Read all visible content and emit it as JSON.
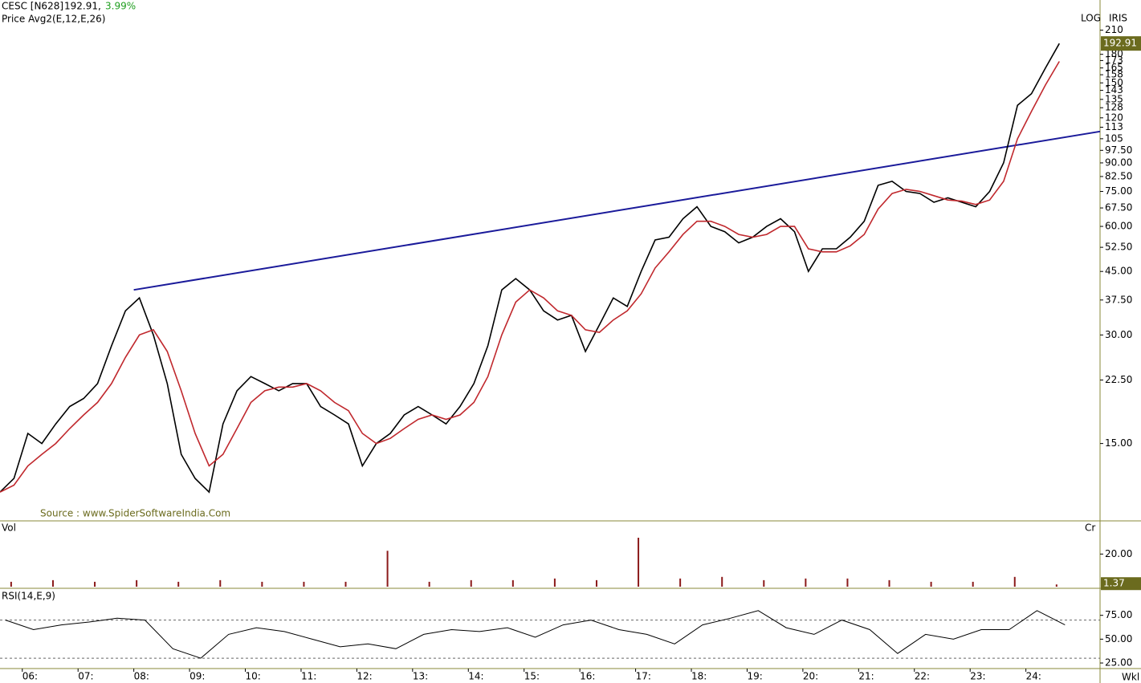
{
  "chart_data": [
    {
      "type": "line",
      "ticker": "CESC [N628]",
      "quote": "192.91,",
      "change": "3.99%",
      "subtitle": "Price  Avg2(E,12,E,26)",
      "scale_label": "LOG",
      "feed_label": "IRIS",
      "source": "Source : www.SpiderSoftwareIndia.Com",
      "log_scale": true,
      "xlim": [
        2005.6,
        2025.33
      ],
      "x": [
        2005.6,
        2005.85,
        2006.1,
        2006.35,
        2006.6,
        2006.85,
        2007.1,
        2007.35,
        2007.6,
        2007.85,
        2008.1,
        2008.35,
        2008.6,
        2008.85,
        2009.1,
        2009.35,
        2009.6,
        2009.85,
        2010.1,
        2010.35,
        2010.6,
        2010.85,
        2011.1,
        2011.35,
        2011.6,
        2011.85,
        2012.1,
        2012.35,
        2012.6,
        2012.85,
        2013.1,
        2013.35,
        2013.6,
        2013.85,
        2014.1,
        2014.35,
        2014.6,
        2014.85,
        2015.1,
        2015.35,
        2015.6,
        2015.85,
        2016.1,
        2016.35,
        2016.6,
        2016.85,
        2017.1,
        2017.35,
        2017.6,
        2017.85,
        2018.1,
        2018.35,
        2018.6,
        2018.85,
        2019.1,
        2019.35,
        2019.6,
        2019.85,
        2020.1,
        2020.35,
        2020.6,
        2020.85,
        2021.1,
        2021.35,
        2021.6,
        2021.85,
        2022.1,
        2022.35,
        2022.6,
        2022.85,
        2023.1,
        2023.35,
        2023.6,
        2023.85,
        2024.1,
        2024.35,
        2024.6
      ],
      "series": [
        {
          "color": "#000000",
          "values": [
            11,
            12,
            16,
            15,
            17,
            19,
            20,
            22,
            28,
            35,
            38,
            30,
            22,
            14,
            12,
            11,
            17,
            21,
            23,
            22,
            21,
            22,
            22,
            19,
            18,
            17,
            13,
            15,
            16,
            18,
            19,
            18,
            17,
            19,
            22,
            28,
            40,
            43,
            40,
            35,
            33,
            34,
            27,
            32,
            38,
            36,
            45,
            55,
            56,
            63,
            68,
            60,
            58,
            54,
            56,
            60,
            63,
            58,
            45,
            52,
            52,
            56,
            62,
            78,
            80,
            75,
            74,
            70,
            72,
            70,
            68,
            75,
            90,
            130,
            140,
            165,
            192.91
          ]
        },
        {
          "color": "#c0282d",
          "values": [
            11,
            11.5,
            13,
            14,
            15,
            16.5,
            18,
            19.5,
            22,
            26,
            30,
            31,
            27,
            21,
            16,
            13,
            14,
            16.5,
            19.5,
            21,
            21.5,
            21.5,
            22,
            21,
            19.5,
            18.5,
            16,
            15,
            15.5,
            16.5,
            17.5,
            18,
            17.5,
            18,
            19.5,
            23,
            30,
            37,
            40,
            38,
            35,
            34,
            31,
            30.5,
            33,
            35,
            39,
            46,
            51,
            57,
            62,
            62,
            60,
            57,
            56,
            57,
            60,
            60,
            52,
            51,
            51,
            53,
            57,
            67,
            74,
            76,
            75,
            73,
            71,
            70.5,
            69,
            71,
            80,
            105,
            125,
            148,
            172
          ]
        }
      ],
      "trendline": {
        "color": "#1a1a9a",
        "x": [
          2008.0,
          2025.33
        ],
        "values": [
          40,
          110
        ]
      },
      "last_color": "#6b6b1e",
      "ylim": [
        9.2,
        224
      ],
      "yticks": [
        {
          "value": 15,
          "label": "15.00"
        },
        {
          "value": 22.5,
          "label": "22.50"
        },
        {
          "value": 30,
          "label": "30.00"
        },
        {
          "value": 37.5,
          "label": "37.50"
        },
        {
          "value": 45,
          "label": "45.00"
        },
        {
          "value": 52.5,
          "label": "52.50"
        },
        {
          "value": 60,
          "label": "60.00"
        },
        {
          "value": 67.5,
          "label": "67.50"
        },
        {
          "value": 75,
          "label": "75.00"
        },
        {
          "value": 82.5,
          "label": "82.50"
        },
        {
          "value": 90,
          "label": "90.00"
        },
        {
          "value": 97.5,
          "label": "97.50"
        },
        105,
        113,
        120,
        128,
        135,
        143,
        150,
        158,
        165,
        173,
        180,
        210
      ]
    },
    {
      "type": "bar",
      "title": "Vol",
      "corner_label": "Cr",
      "color": "#8b1a1a",
      "last_color": "#6b6b1e",
      "xlim": [
        2005.6,
        2025.33
      ],
      "x": [
        2005.8,
        2006.55,
        2007.3,
        2008.05,
        2008.8,
        2009.55,
        2010.3,
        2011.05,
        2011.8,
        2012.55,
        2013.3,
        2014.05,
        2014.8,
        2015.55,
        2016.3,
        2017.05,
        2017.8,
        2018.55,
        2019.3,
        2020.05,
        2020.8,
        2021.55,
        2022.3,
        2023.05,
        2023.8,
        2024.55
      ],
      "values": [
        3,
        4,
        3,
        4,
        3,
        4,
        3,
        3,
        3,
        22,
        3,
        4,
        4,
        5,
        4,
        30,
        5,
        6,
        4,
        5,
        5,
        4,
        3,
        3,
        6,
        1.37
      ],
      "ylim": [
        0,
        30
      ],
      "yticks": [
        {
          "value": 20,
          "label": "20.00"
        }
      ]
    },
    {
      "type": "line",
      "title": "RSI(14,E,9)",
      "unit_label": "Wkl",
      "color": "#000000",
      "xlim": [
        2005.6,
        2025.33
      ],
      "x": [
        2005.7,
        2006.2,
        2006.7,
        2007.2,
        2007.7,
        2008.2,
        2008.7,
        2009.2,
        2009.7,
        2010.2,
        2010.7,
        2011.2,
        2011.7,
        2012.2,
        2012.7,
        2013.2,
        2013.7,
        2014.2,
        2014.7,
        2015.2,
        2015.7,
        2016.2,
        2016.7,
        2017.2,
        2017.7,
        2018.2,
        2018.7,
        2019.2,
        2019.7,
        2020.2,
        2020.7,
        2021.2,
        2021.7,
        2022.2,
        2022.7,
        2023.2,
        2023.7,
        2024.2,
        2024.7
      ],
      "values": [
        70,
        60,
        65,
        68,
        72,
        70,
        40,
        30,
        55,
        62,
        58,
        50,
        42,
        45,
        40,
        55,
        60,
        58,
        62,
        52,
        65,
        70,
        60,
        55,
        45,
        65,
        72,
        80,
        62,
        55,
        70,
        60,
        35,
        55,
        50,
        60,
        60,
        80,
        65
      ],
      "levels": [
        70,
        30
      ],
      "ylim": [
        20,
        100
      ],
      "yticks": [
        {
          "value": 25,
          "label": "25.00"
        },
        {
          "value": 50,
          "label": "50.00"
        },
        {
          "value": 75,
          "label": "75.00"
        }
      ],
      "xticks": [
        {
          "value": 2006,
          "label": "06:"
        },
        {
          "value": 2007,
          "label": "07:"
        },
        {
          "value": 2008,
          "label": "08:"
        },
        {
          "value": 2009,
          "label": "09:"
        },
        {
          "value": 2010,
          "label": "10:"
        },
        {
          "value": 2011,
          "label": "11:"
        },
        {
          "value": 2012,
          "label": "12:"
        },
        {
          "value": 2013,
          "label": "13:"
        },
        {
          "value": 2014,
          "label": "14:"
        },
        {
          "value": 2015,
          "label": "15:"
        },
        {
          "value": 2016,
          "label": "16:"
        },
        {
          "value": 2017,
          "label": "17:"
        },
        {
          "value": 2018,
          "label": "18:"
        },
        {
          "value": 2019,
          "label": "19:"
        },
        {
          "value": 2020,
          "label": "20:"
        },
        {
          "value": 2021,
          "label": "21:"
        },
        {
          "value": 2022,
          "label": "22:"
        },
        {
          "value": 2023,
          "label": "23:"
        },
        {
          "value": 2024,
          "label": "24:"
        }
      ]
    }
  ]
}
